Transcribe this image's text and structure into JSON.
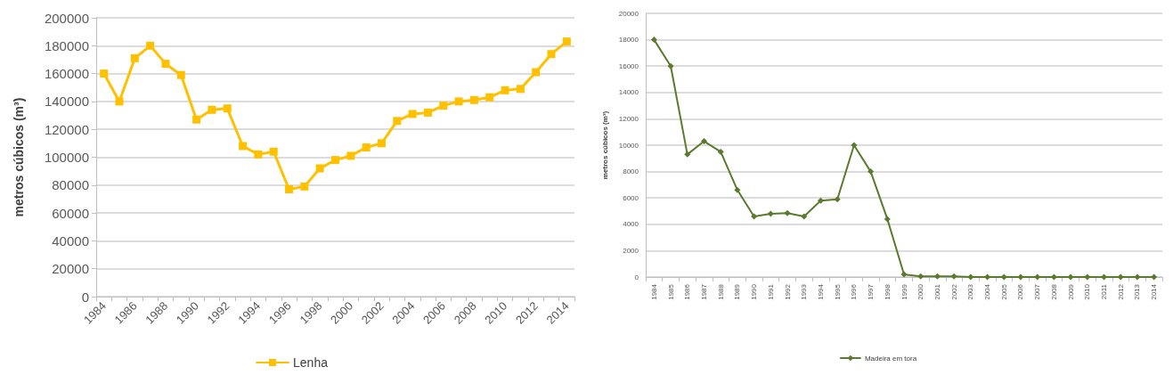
{
  "chart_data": [
    {
      "type": "line",
      "ylabel": "metros cúbicos (m³)",
      "categories": [
        "1984",
        null,
        "1986",
        null,
        "1988",
        null,
        "1990",
        null,
        "1992",
        null,
        "1994",
        null,
        "1996",
        null,
        "1998",
        null,
        "2000",
        null,
        "2002",
        null,
        "2004",
        null,
        "2006",
        null,
        "2008",
        null,
        "2010",
        null,
        "2012",
        null,
        "2014"
      ],
      "series": [
        {
          "name": "Lenha",
          "color": "#ffc000",
          "values": [
            160000,
            140000,
            171000,
            180000,
            167000,
            159000,
            127000,
            134000,
            135000,
            108000,
            102000,
            104000,
            77000,
            79000,
            92000,
            98000,
            101000,
            107000,
            110000,
            126000,
            131000,
            132000,
            137000,
            140000,
            141000,
            143000,
            148000,
            149000,
            161000,
            174000,
            183000
          ]
        }
      ],
      "ylim": [
        0,
        200000
      ],
      "yticks": [
        0,
        20000,
        40000,
        60000,
        80000,
        100000,
        120000,
        140000,
        160000,
        180000,
        200000
      ],
      "grid": "y",
      "legend": "bottom",
      "marker": "square",
      "line_style": "solid"
    },
    {
      "type": "line",
      "ylabel": "metros cúbicos (m³)",
      "categories": [
        "1984",
        "1985",
        "1986",
        "1987",
        "1988",
        "1989",
        "1990",
        "1991",
        "1992",
        "1993",
        "1994",
        "1995",
        "1996",
        "1997",
        "1998",
        "1999",
        "2000",
        "2001",
        "2002",
        "2003",
        "2004",
        "2005",
        "2006",
        "2007",
        "2008",
        "2009",
        "2010",
        "2011",
        "2012",
        "2013",
        "2014"
      ],
      "series": [
        {
          "name": "Madeira em tora",
          "color": "#5a7a2e",
          "values": [
            18000,
            16000,
            9300,
            10300,
            9500,
            6600,
            4600,
            4800,
            4850,
            4600,
            5800,
            5900,
            10000,
            8000,
            4400,
            200,
            50,
            50,
            50,
            0,
            0,
            0,
            0,
            0,
            0,
            0,
            0,
            0,
            0,
            0,
            0
          ]
        }
      ],
      "ylim": [
        0,
        20000
      ],
      "yticks": [
        0,
        2000,
        4000,
        6000,
        8000,
        10000,
        12000,
        14000,
        16000,
        18000,
        20000
      ],
      "grid": "y",
      "legend": "bottom",
      "marker": "diamond",
      "line_style": "solid"
    }
  ]
}
